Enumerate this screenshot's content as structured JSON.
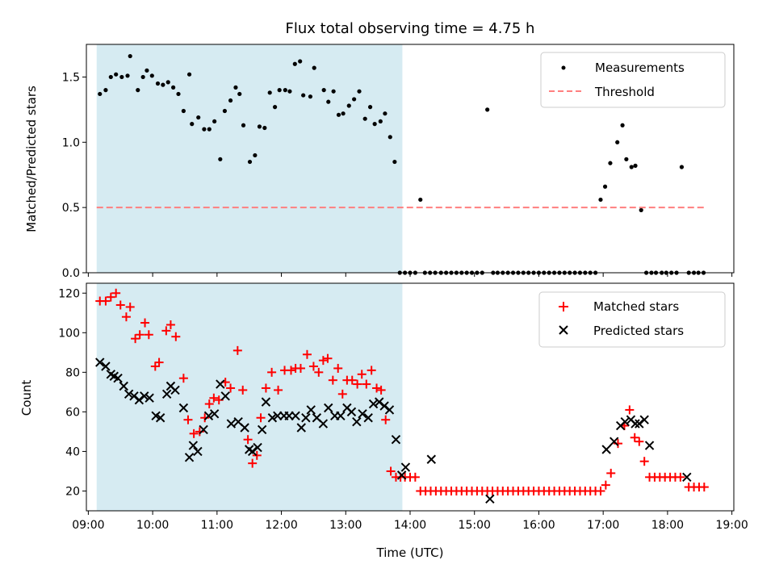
{
  "colors": {
    "shade": "#add8e6",
    "measurements": "#000000",
    "threshold": "#ff7f7f",
    "matched": "#ff0000",
    "predicted": "#000000",
    "frame": "#000000"
  },
  "chart_data": [
    {
      "type": "scatter",
      "title": "Flux total observing time = 4.75 h",
      "xlabel": "",
      "ylabel": "Matched/Predicted stars",
      "xlim": [
        8.97,
        19.03
      ],
      "ylim": [
        0.0,
        1.75
      ],
      "yticks": [
        0.0,
        0.5,
        1.0,
        1.5
      ],
      "ytick_labels": [
        "0.0",
        "0.5",
        "1.0",
        "1.5"
      ],
      "shaded_region": [
        9.13,
        13.88
      ],
      "legend_position": "top-right",
      "series": [
        {
          "name": "Measurements",
          "marker": "dot",
          "x": [
            9.18,
            9.27,
            9.35,
            9.43,
            9.52,
            9.61,
            9.65,
            9.77,
            9.85,
            9.91,
            9.99,
            10.08,
            10.16,
            10.24,
            10.32,
            10.4,
            10.48,
            10.57,
            10.61,
            10.71,
            10.8,
            10.88,
            10.96,
            11.05,
            11.12,
            11.21,
            11.29,
            11.35,
            11.41,
            11.51,
            11.59,
            11.66,
            11.74,
            11.82,
            11.9,
            11.97,
            12.06,
            12.13,
            12.21,
            12.29,
            12.34,
            12.45,
            12.51,
            12.66,
            12.73,
            12.81,
            12.89,
            12.96,
            13.05,
            13.13,
            13.21,
            13.3,
            13.38,
            13.45,
            13.54,
            13.61,
            13.69,
            13.76,
            13.84,
            13.92,
            14.0,
            14.08,
            14.16,
            14.23,
            14.31,
            14.39,
            14.48,
            14.56,
            14.64,
            14.72,
            14.8,
            14.88,
            14.96,
            15.04,
            15.12,
            15.2,
            15.29,
            15.36,
            15.44,
            15.52,
            15.6,
            15.68,
            15.76,
            15.84,
            15.92,
            16.0,
            16.08,
            16.16,
            16.24,
            16.32,
            16.4,
            16.48,
            16.56,
            16.64,
            16.72,
            16.8,
            16.88,
            16.96,
            17.03,
            17.11,
            17.22,
            17.3,
            17.36,
            17.44,
            17.5,
            17.59,
            17.67,
            17.75,
            17.82,
            17.91,
            17.98,
            18.06,
            18.14,
            18.22,
            18.33,
            18.41,
            18.48,
            18.56
          ],
          "y": [
            1.37,
            1.4,
            1.5,
            1.52,
            1.5,
            1.51,
            1.66,
            1.4,
            1.5,
            1.55,
            1.51,
            1.45,
            1.44,
            1.46,
            1.42,
            1.37,
            1.24,
            1.52,
            1.14,
            1.19,
            1.1,
            1.1,
            1.16,
            0.87,
            1.24,
            1.32,
            1.42,
            1.37,
            1.13,
            0.85,
            0.9,
            1.12,
            1.11,
            1.38,
            1.27,
            1.4,
            1.4,
            1.39,
            1.6,
            1.62,
            1.36,
            1.35,
            1.57,
            1.4,
            1.31,
            1.39,
            1.21,
            1.22,
            1.28,
            1.33,
            1.39,
            1.18,
            1.27,
            1.14,
            1.16,
            1.22,
            1.04,
            0.85,
            0.0,
            0.0,
            0.0,
            0.0,
            0.56,
            0.0,
            0.0,
            0.0,
            0.0,
            0.0,
            0.0,
            0.0,
            0.0,
            0.0,
            0.0,
            0.0,
            0.0,
            1.25,
            0.0,
            0.0,
            0.0,
            0.0,
            0.0,
            0.0,
            0.0,
            0.0,
            0.0,
            0.0,
            0.0,
            0.0,
            0.0,
            0.0,
            0.0,
            0.0,
            0.0,
            0.0,
            0.0,
            0.0,
            0.0,
            0.56,
            0.66,
            0.84,
            1.0,
            1.13,
            0.87,
            0.81,
            0.82,
            0.48,
            0.0,
            0.0,
            0.0,
            0.0,
            0.0,
            0.0,
            0.0,
            0.81,
            0.0,
            0.0,
            0.0,
            0.0
          ]
        },
        {
          "name": "Threshold",
          "marker": "dashed-line",
          "x": [
            9.13,
            18.58
          ],
          "y": [
            0.5,
            0.5
          ]
        }
      ]
    },
    {
      "type": "scatter",
      "title": "",
      "xlabel": "Time (UTC)",
      "ylabel": "Count",
      "xlim": [
        8.97,
        19.03
      ],
      "ylim": [
        10,
        125
      ],
      "yticks": [
        20,
        40,
        60,
        80,
        100,
        120
      ],
      "ytick_labels": [
        "20",
        "40",
        "60",
        "80",
        "100",
        "120"
      ],
      "xticks": [
        9,
        10,
        11,
        12,
        13,
        14,
        15,
        16,
        17,
        18,
        19
      ],
      "xtick_labels": [
        "09:00",
        "10:00",
        "11:00",
        "12:00",
        "13:00",
        "14:00",
        "15:00",
        "16:00",
        "17:00",
        "18:00",
        "19:00"
      ],
      "shaded_region": [
        9.13,
        13.88
      ],
      "legend_position": "top-right",
      "series": [
        {
          "name": "Matched stars",
          "marker": "plus",
          "x": [
            9.18,
            9.27,
            9.35,
            9.43,
            9.5,
            9.59,
            9.65,
            9.73,
            9.8,
            9.88,
            9.94,
            10.04,
            10.1,
            10.21,
            10.28,
            10.36,
            10.48,
            10.55,
            10.64,
            10.73,
            10.81,
            10.88,
            10.95,
            11.03,
            11.13,
            11.21,
            11.32,
            11.4,
            11.48,
            11.55,
            11.62,
            11.68,
            11.76,
            11.85,
            11.95,
            12.05,
            12.15,
            12.22,
            12.3,
            12.4,
            12.5,
            12.58,
            12.65,
            12.72,
            12.8,
            12.88,
            12.95,
            13.02,
            13.1,
            13.18,
            13.25,
            13.32,
            13.4,
            13.48,
            13.55,
            13.62,
            13.7,
            13.78,
            13.85,
            13.92,
            14.0,
            14.08,
            14.16,
            14.24,
            14.32,
            14.4,
            14.48,
            14.56,
            14.64,
            14.72,
            14.8,
            14.88,
            14.96,
            15.04,
            15.12,
            15.2,
            15.28,
            15.36,
            15.44,
            15.52,
            15.6,
            15.68,
            15.76,
            15.84,
            15.92,
            16.0,
            16.08,
            16.16,
            16.24,
            16.32,
            16.4,
            16.48,
            16.56,
            16.64,
            16.72,
            16.8,
            16.88,
            16.96,
            17.04,
            17.12,
            17.23,
            17.33,
            17.41,
            17.49,
            17.56,
            17.64,
            17.72,
            17.8,
            17.88,
            17.96,
            18.04,
            18.12,
            18.2,
            18.33,
            18.41,
            18.49,
            18.57
          ],
          "y": [
            116,
            116,
            118,
            120,
            114,
            108,
            113,
            97,
            99,
            105,
            99,
            83,
            85,
            101,
            104,
            98,
            77,
            56,
            49,
            50,
            57,
            64,
            67,
            66,
            75,
            72,
            91,
            71,
            46,
            34,
            38,
            57,
            72,
            80,
            71,
            81,
            81,
            82,
            82,
            89,
            83,
            80,
            86,
            87,
            76,
            82,
            69,
            76,
            76,
            74,
            79,
            74,
            81,
            72,
            71,
            56,
            30,
            27,
            27,
            27,
            27,
            27,
            20,
            20,
            20,
            20,
            20,
            20,
            20,
            20,
            20,
            20,
            20,
            20,
            20,
            20,
            20,
            20,
            20,
            20,
            20,
            20,
            20,
            20,
            20,
            20,
            20,
            20,
            20,
            20,
            20,
            20,
            20,
            20,
            20,
            20,
            20,
            20,
            23,
            29,
            44,
            53,
            61,
            47,
            45,
            35,
            27,
            27,
            27,
            27,
            27,
            27,
            27,
            22,
            22,
            22,
            22
          ]
        },
        {
          "name": "Predicted stars",
          "marker": "x",
          "x": [
            9.18,
            9.27,
            9.35,
            9.4,
            9.46,
            9.55,
            9.63,
            9.71,
            9.79,
            9.87,
            9.95,
            10.05,
            10.12,
            10.22,
            10.28,
            10.35,
            10.48,
            10.57,
            10.63,
            10.7,
            10.79,
            10.87,
            10.96,
            11.05,
            11.13,
            11.22,
            11.33,
            11.43,
            11.5,
            11.55,
            11.63,
            11.7,
            11.76,
            11.86,
            11.94,
            12.04,
            12.12,
            12.22,
            12.31,
            12.38,
            12.46,
            12.55,
            12.65,
            12.73,
            12.83,
            12.92,
            13.02,
            13.09,
            13.17,
            13.26,
            13.35,
            13.43,
            13.52,
            13.6,
            13.68,
            13.78,
            13.87,
            13.93,
            14.33,
            15.24,
            17.05,
            17.17,
            17.27,
            17.34,
            17.43,
            17.5,
            17.56,
            17.64,
            17.72,
            18.3
          ],
          "y": [
            85,
            83,
            79,
            78,
            77,
            73,
            69,
            68,
            66,
            68,
            67,
            58,
            57,
            69,
            73,
            71,
            62,
            37,
            43,
            40,
            51,
            58,
            59,
            74,
            68,
            54,
            55,
            52,
            41,
            40,
            42,
            51,
            65,
            57,
            58,
            58,
            58,
            58,
            52,
            57,
            61,
            57,
            54,
            62,
            58,
            58,
            62,
            60,
            55,
            59,
            57,
            64,
            65,
            63,
            61,
            46,
            28,
            32,
            36,
            16,
            41,
            45,
            53,
            55,
            56,
            54,
            54,
            56,
            43,
            27
          ]
        }
      ]
    }
  ]
}
